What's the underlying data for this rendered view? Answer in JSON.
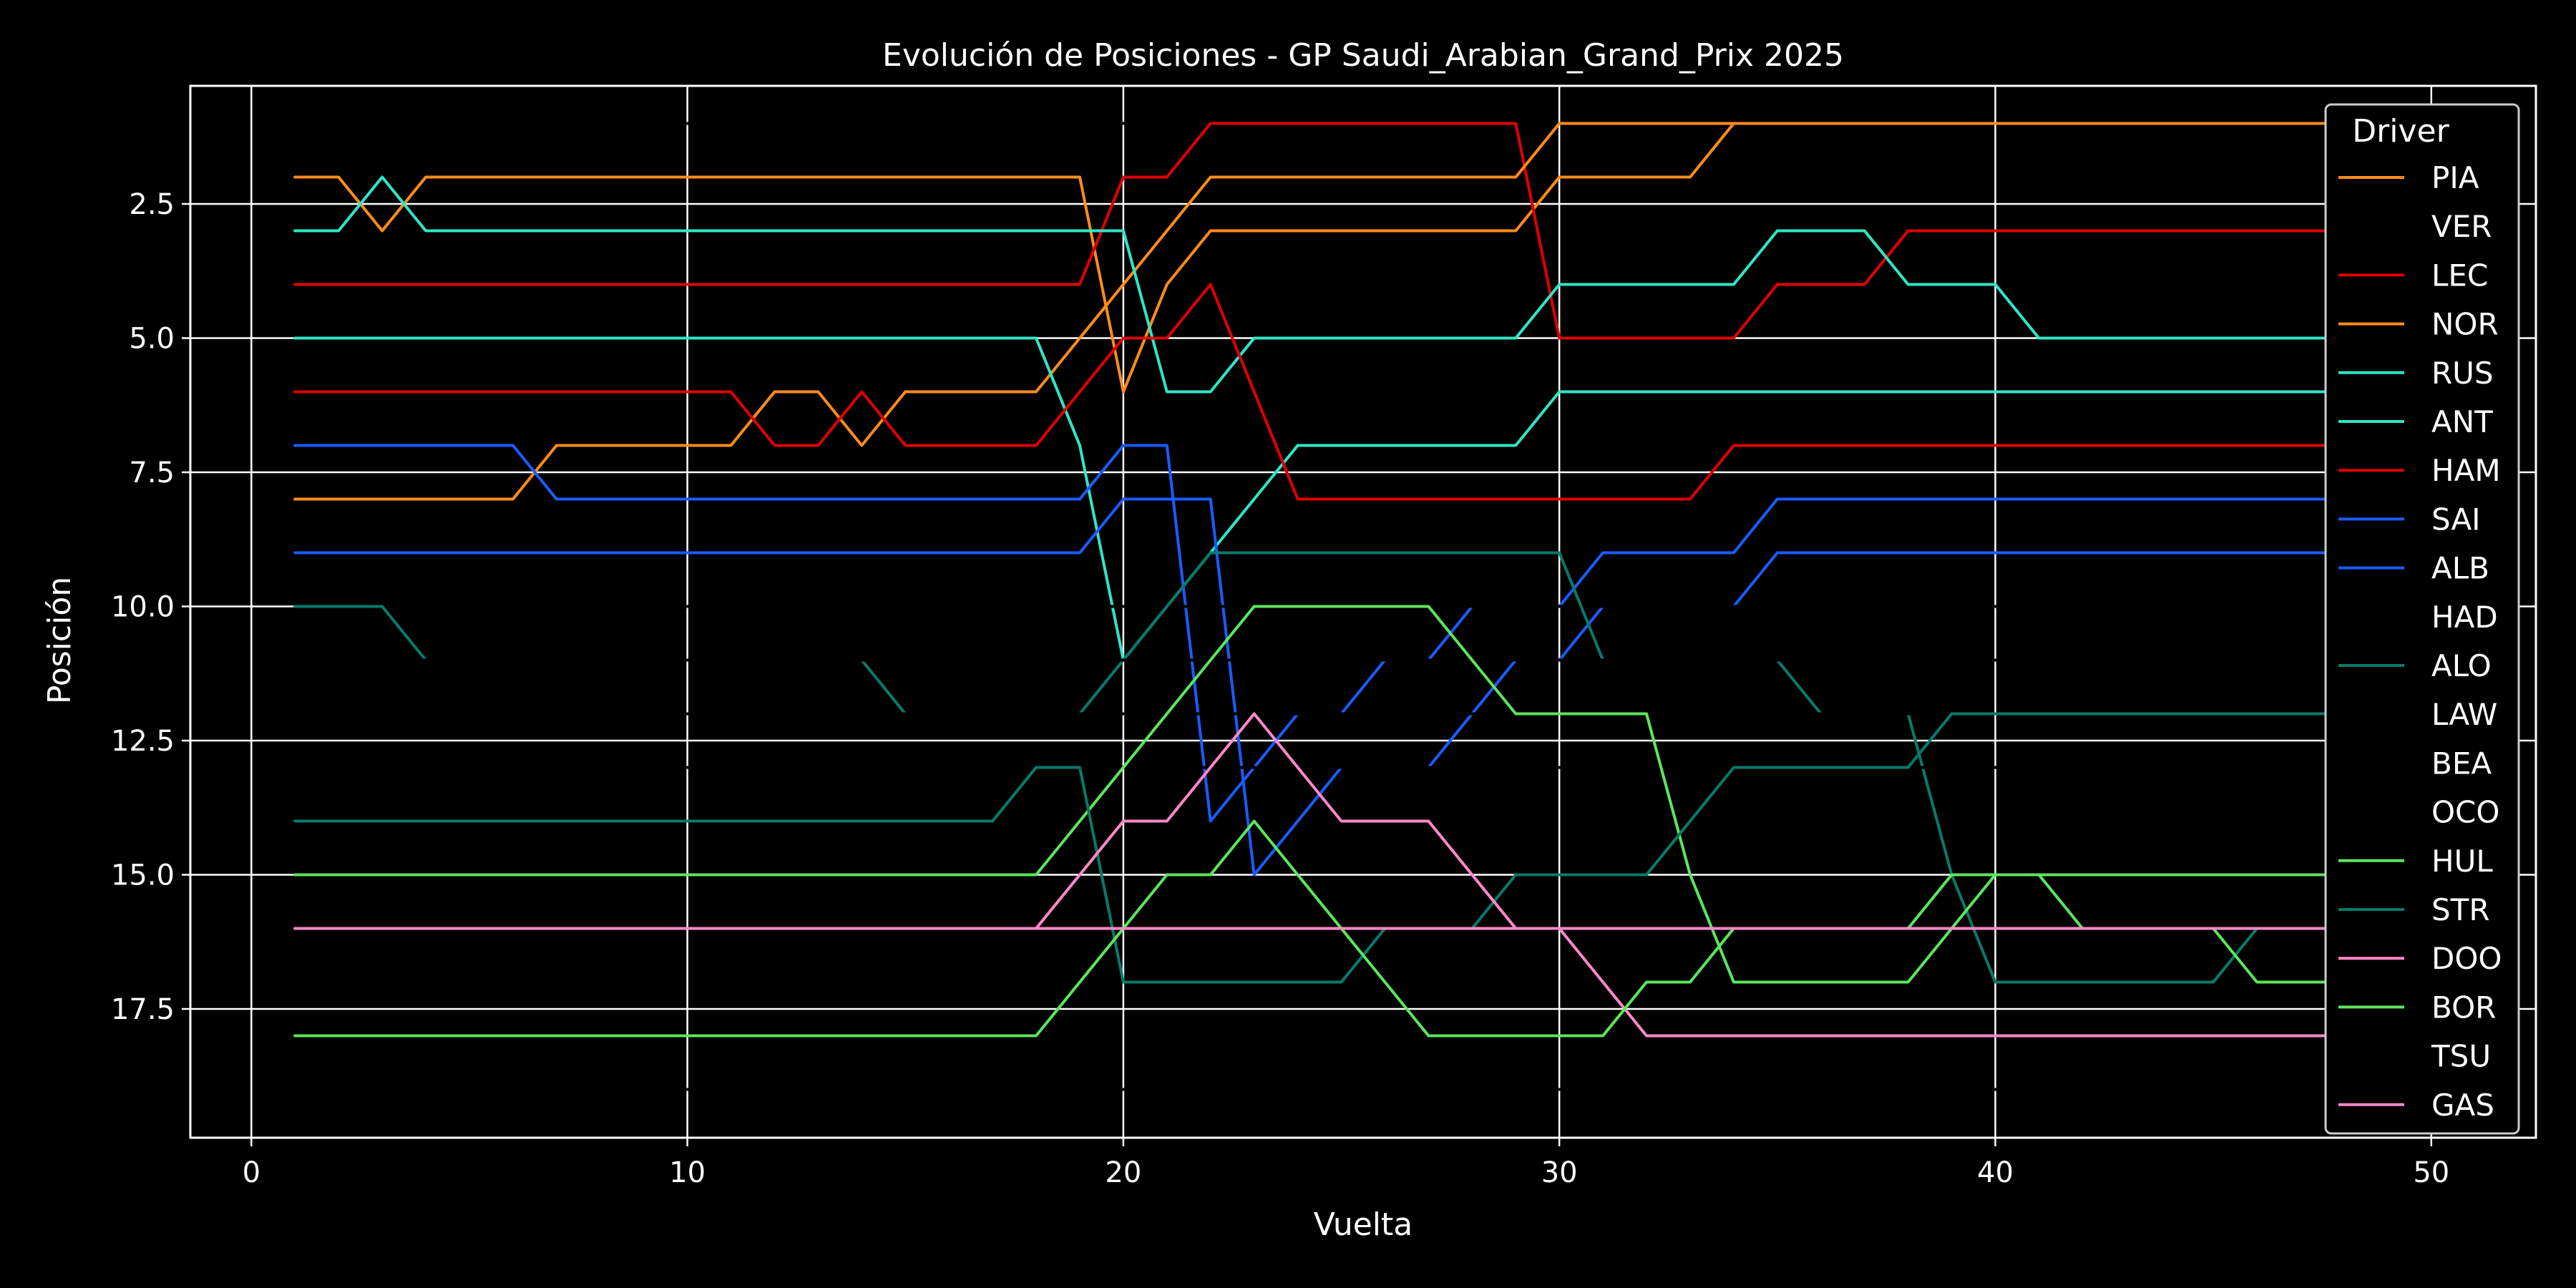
{
  "chart_data": {
    "type": "line",
    "title": "Evolución de Posiciones - GP Saudi_Arabian_Grand_Prix 2025",
    "xlabel": "Vuelta",
    "ylabel": "Posición",
    "xlim": [
      -1.4,
      52.4
    ],
    "ylim": [
      19.9,
      0.3
    ],
    "y_inverted": true,
    "grid": true,
    "legend_position": "top-right",
    "legend_title": "Driver",
    "x_ticks": [
      0,
      10,
      20,
      30,
      40,
      50
    ],
    "x_tick_labels": [
      "0",
      "10",
      "20",
      "30",
      "40",
      "50"
    ],
    "y_ticks": [
      2.5,
      5.0,
      7.5,
      10.0,
      12.5,
      15.0,
      17.5
    ],
    "y_tick_labels": [
      "2.5",
      "5.0",
      "7.5",
      "10.0",
      "12.5",
      "15.0",
      "17.5"
    ],
    "series": [
      {
        "name": "PIA",
        "color": "#ff8c1a",
        "points": [
          [
            1,
            2
          ],
          [
            2,
            2
          ],
          [
            3,
            3
          ],
          [
            4,
            2
          ],
          [
            19,
            2
          ],
          [
            20,
            6
          ],
          [
            21,
            4
          ],
          [
            22,
            3
          ],
          [
            29,
            3
          ],
          [
            30,
            2
          ],
          [
            33,
            2
          ],
          [
            34,
            1
          ],
          [
            50,
            1
          ]
        ]
      },
      {
        "name": "VER",
        "color": "#000000",
        "points": [
          [
            1,
            1
          ],
          [
            50,
            1
          ]
        ]
      },
      {
        "name": "LEC",
        "color": "#e00000",
        "points": [
          [
            1,
            4
          ],
          [
            19,
            4
          ],
          [
            20,
            2
          ],
          [
            21,
            2
          ],
          [
            22,
            1
          ],
          [
            29,
            1
          ],
          [
            30,
            5
          ],
          [
            34,
            5
          ],
          [
            35,
            4
          ],
          [
            37,
            4
          ],
          [
            38,
            3
          ],
          [
            50,
            3
          ]
        ]
      },
      {
        "name": "NOR",
        "color": "#ff8c1a",
        "points": [
          [
            1,
            8
          ],
          [
            6,
            8
          ],
          [
            7,
            7
          ],
          [
            11,
            7
          ],
          [
            12,
            6
          ],
          [
            13,
            6
          ],
          [
            14,
            7
          ],
          [
            15,
            6
          ],
          [
            18,
            6
          ],
          [
            19,
            5
          ],
          [
            20,
            4
          ],
          [
            21,
            3
          ],
          [
            22,
            2
          ],
          [
            29,
            2
          ],
          [
            30,
            1
          ],
          [
            50,
            1
          ]
        ]
      },
      {
        "name": "RUS",
        "color": "#2ee6c8",
        "points": [
          [
            1,
            3
          ],
          [
            2,
            3
          ],
          [
            3,
            2
          ],
          [
            4,
            3
          ],
          [
            20,
            3
          ],
          [
            21,
            6
          ],
          [
            22,
            6
          ],
          [
            23,
            5
          ],
          [
            29,
            5
          ],
          [
            30,
            4
          ],
          [
            34,
            4
          ],
          [
            35,
            3
          ],
          [
            37,
            3
          ],
          [
            38,
            4
          ],
          [
            40,
            4
          ],
          [
            41,
            5
          ],
          [
            50,
            5
          ]
        ]
      },
      {
        "name": "ANT",
        "color": "#2ee6c8",
        "points": [
          [
            1,
            5
          ],
          [
            18,
            5
          ],
          [
            19,
            7
          ],
          [
            20,
            11
          ],
          [
            21,
            10
          ],
          [
            22,
            9
          ],
          [
            23,
            8
          ],
          [
            24,
            7
          ],
          [
            29,
            7
          ],
          [
            30,
            6
          ],
          [
            50,
            6
          ]
        ]
      },
      {
        "name": "HAM",
        "color": "#e00000",
        "points": [
          [
            1,
            6
          ],
          [
            11,
            6
          ],
          [
            12,
            7
          ],
          [
            13,
            7
          ],
          [
            14,
            6
          ],
          [
            15,
            7
          ],
          [
            18,
            7
          ],
          [
            19,
            6
          ],
          [
            20,
            5
          ],
          [
            21,
            5
          ],
          [
            22,
            4
          ],
          [
            23,
            6
          ],
          [
            24,
            8
          ],
          [
            33,
            8
          ],
          [
            34,
            7
          ],
          [
            50,
            7
          ]
        ]
      },
      {
        "name": "SAI",
        "color": "#1a5cff",
        "points": [
          [
            1,
            9
          ],
          [
            19,
            9
          ],
          [
            20,
            8
          ],
          [
            22,
            8
          ],
          [
            23,
            15
          ],
          [
            24,
            14
          ],
          [
            25,
            13
          ],
          [
            27,
            13
          ],
          [
            28,
            12
          ],
          [
            29,
            11
          ],
          [
            30,
            11
          ],
          [
            31,
            10
          ],
          [
            34,
            10
          ],
          [
            35,
            9
          ],
          [
            50,
            9
          ]
        ]
      },
      {
        "name": "ALB",
        "color": "#1a5cff",
        "points": [
          [
            1,
            7
          ],
          [
            6,
            7
          ],
          [
            7,
            8
          ],
          [
            19,
            8
          ],
          [
            20,
            7
          ],
          [
            21,
            7
          ],
          [
            22,
            14
          ],
          [
            23,
            13
          ],
          [
            24,
            12
          ],
          [
            25,
            12
          ],
          [
            26,
            11
          ],
          [
            27,
            11
          ],
          [
            28,
            10
          ],
          [
            30,
            10
          ],
          [
            31,
            9
          ],
          [
            34,
            9
          ],
          [
            35,
            8
          ],
          [
            50,
            8
          ]
        ]
      },
      {
        "name": "HAD",
        "color": "#000000",
        "points": [
          [
            1,
            10
          ],
          [
            50,
            10
          ]
        ]
      },
      {
        "name": "ALO",
        "color": "#087a6a",
        "points": [
          [
            1,
            10
          ],
          [
            3,
            10
          ],
          [
            4,
            11
          ],
          [
            14,
            11
          ],
          [
            15,
            12
          ],
          [
            19,
            12
          ],
          [
            20,
            11
          ],
          [
            21,
            10
          ],
          [
            22,
            9
          ],
          [
            30,
            9
          ],
          [
            31,
            11
          ],
          [
            35,
            11
          ],
          [
            36,
            12
          ],
          [
            38,
            12
          ],
          [
            39,
            15
          ],
          [
            40,
            17
          ],
          [
            45,
            17
          ],
          [
            46,
            16
          ],
          [
            48,
            16
          ],
          [
            49,
            17
          ]
        ]
      },
      {
        "name": "LAW",
        "color": "#000000",
        "points": [
          [
            1,
            11
          ],
          [
            50,
            11
          ]
        ]
      },
      {
        "name": "BEA",
        "color": "#000000",
        "points": [
          [
            1,
            12
          ],
          [
            50,
            12
          ]
        ]
      },
      {
        "name": "OCO",
        "color": "#000000",
        "points": [
          [
            1,
            13
          ],
          [
            50,
            13
          ]
        ]
      },
      {
        "name": "HUL",
        "color": "#5ce65c",
        "points": [
          [
            1,
            15
          ],
          [
            18,
            15
          ],
          [
            19,
            14
          ],
          [
            20,
            13
          ],
          [
            21,
            12
          ],
          [
            22,
            11
          ],
          [
            23,
            10
          ],
          [
            27,
            10
          ],
          [
            28,
            11
          ],
          [
            29,
            12
          ],
          [
            32,
            12
          ],
          [
            33,
            15
          ],
          [
            34,
            17
          ],
          [
            38,
            17
          ],
          [
            39,
            16
          ],
          [
            40,
            15
          ],
          [
            41,
            15
          ],
          [
            42,
            16
          ],
          [
            45,
            16
          ],
          [
            46,
            17
          ],
          [
            48,
            17
          ],
          [
            49,
            18
          ]
        ]
      },
      {
        "name": "STR",
        "color": "#087a6a",
        "points": [
          [
            1,
            14
          ],
          [
            17,
            14
          ],
          [
            18,
            13
          ],
          [
            19,
            13
          ],
          [
            20,
            17
          ],
          [
            25,
            17
          ],
          [
            26,
            16
          ],
          [
            28,
            16
          ],
          [
            29,
            15
          ],
          [
            32,
            15
          ],
          [
            33,
            14
          ],
          [
            34,
            13
          ],
          [
            38,
            13
          ],
          [
            39,
            12
          ],
          [
            49,
            12
          ]
        ]
      },
      {
        "name": "DOO",
        "color": "#ff88c8",
        "points": [
          [
            1,
            16
          ],
          [
            18,
            16
          ],
          [
            19,
            15
          ],
          [
            20,
            14
          ],
          [
            21,
            14
          ],
          [
            22,
            13
          ],
          [
            23,
            12
          ],
          [
            24,
            13
          ],
          [
            25,
            14
          ],
          [
            27,
            14
          ],
          [
            28,
            15
          ],
          [
            29,
            16
          ],
          [
            30,
            16
          ],
          [
            31,
            17
          ],
          [
            32,
            18
          ],
          [
            48,
            18
          ],
          [
            49,
            17
          ]
        ]
      },
      {
        "name": "BOR",
        "color": "#5ce65c",
        "points": [
          [
            1,
            18
          ],
          [
            18,
            18
          ],
          [
            19,
            17
          ],
          [
            20,
            16
          ],
          [
            21,
            15
          ],
          [
            22,
            15
          ],
          [
            23,
            14
          ],
          [
            24,
            15
          ],
          [
            25,
            16
          ],
          [
            26,
            17
          ],
          [
            27,
            18
          ],
          [
            31,
            18
          ],
          [
            32,
            17
          ],
          [
            33,
            17
          ],
          [
            34,
            16
          ],
          [
            38,
            16
          ],
          [
            39,
            15
          ],
          [
            50,
            15
          ]
        ]
      },
      {
        "name": "TSU",
        "color": "#000000",
        "points": [
          [
            1,
            19
          ],
          [
            50,
            19
          ]
        ]
      },
      {
        "name": "GAS",
        "color": "#ff88c8",
        "points": [
          [
            1,
            16
          ],
          [
            50,
            16
          ]
        ]
      }
    ]
  }
}
